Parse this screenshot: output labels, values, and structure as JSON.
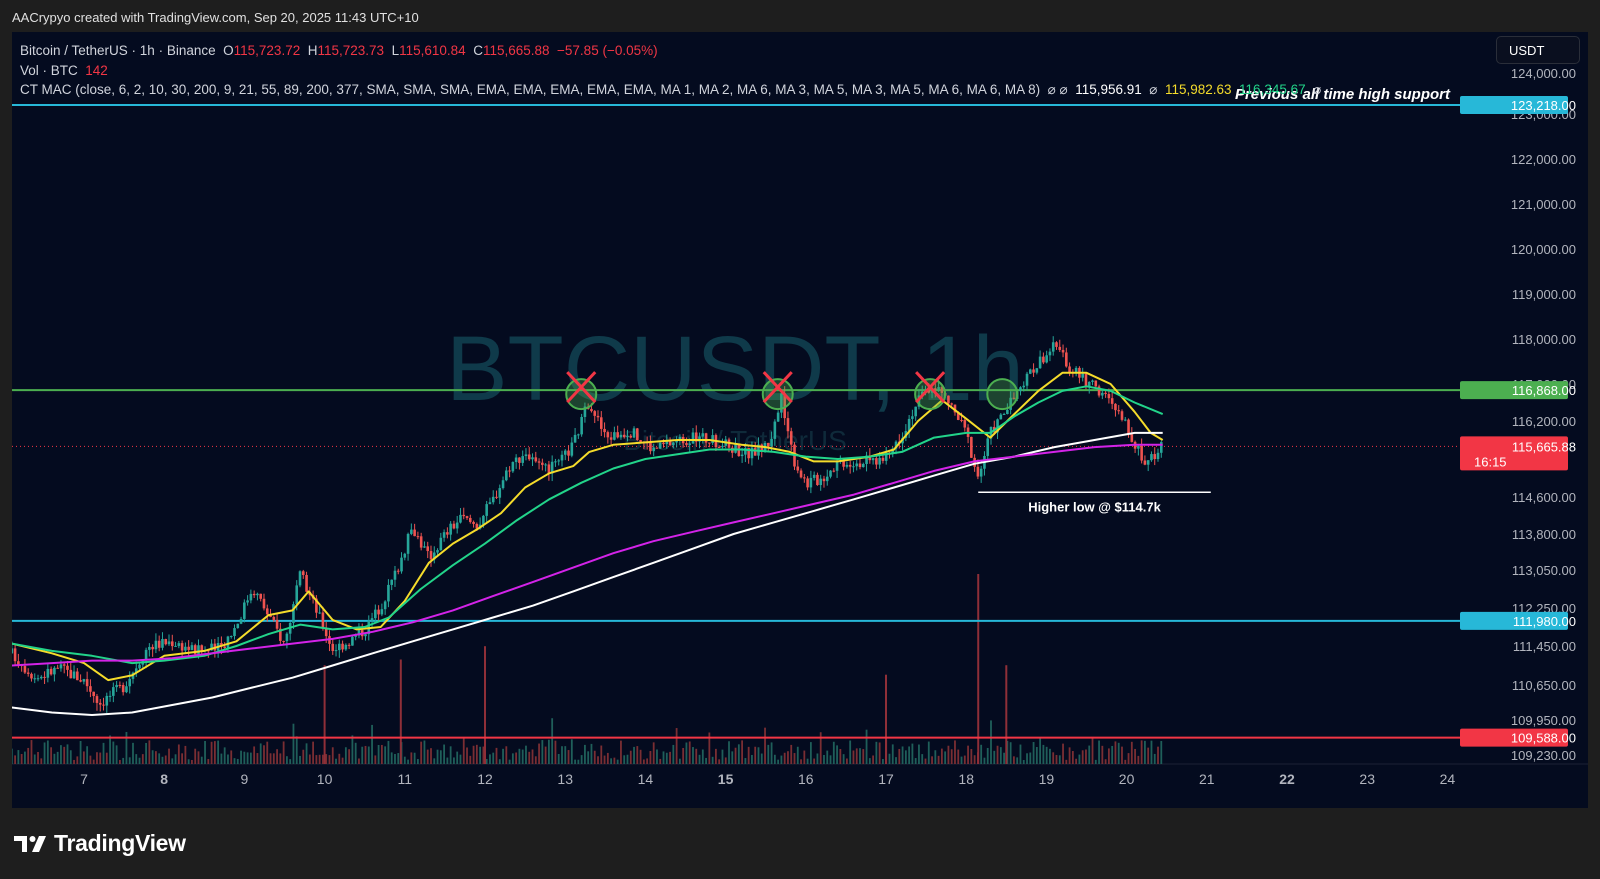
{
  "header": {
    "credit": "AACrypyo created with TradingView.com, Sep 20, 2025 11:43 UTC+10"
  },
  "legend": {
    "symbol": "Bitcoin / TetherUS · 1h · Binance",
    "open_label": "O",
    "open": "115,723.72",
    "high_label": "H",
    "high": "115,723.73",
    "low_label": "L",
    "low": "115,610.84",
    "close_label": "C",
    "close": "115,665.88",
    "change": "−57.85 (−0.05%)",
    "vol_label": "Vol · BTC",
    "vol": "142",
    "indicator": "CT MAC (close, 6, 2, 10, 30, 200, 9, 21, 55, 89, 200, 377, SMA, SMA, SMA, EMA, EMA, EMA, EMA, EMA, MA 1, MA 2, MA 6, MA 3, MA 5, MA 3, MA 5, MA 6, MA 6, MA 8)",
    "ind_symbols": "⌀ ⌀",
    "ind_v1": "115,956.91",
    "ind_sym2": "⌀",
    "ind_v2": "115,982.63",
    "ind_v3": "116,345.67",
    "ind_sym3": "⌀"
  },
  "currency": "USDT",
  "watermark": {
    "symbol": "BTCUSDT, 1h",
    "name": "Bitcoin / TetherUS"
  },
  "annotations": {
    "ath_support": "Previous all time high support",
    "higher_low": "Higher low @ $114.7k"
  },
  "footer": {
    "logo": "TradingView"
  },
  "colors": {
    "background": "#040b1f",
    "up": "#26a69a",
    "down": "#ef5350",
    "ema_yellow": "#f5dc2b",
    "ema_green": "#22d48a",
    "ma_white": "#ffffff",
    "ma_magenta": "#d323e8",
    "level_cyan": "#27b8d8",
    "level_green": "#4caf50",
    "level_red": "#f23645"
  },
  "chart_data": {
    "type": "candlestick",
    "symbol": "BTCUSDT",
    "interval": "1h",
    "y_scale": "non-linear (price axis labels as shown)",
    "y_ticks": [
      {
        "value": 124000,
        "label": "124,000.00"
      },
      {
        "value": 123000,
        "label": "123,000.00"
      },
      {
        "value": 122000,
        "label": "122,000.00"
      },
      {
        "value": 121000,
        "label": "121,000.00"
      },
      {
        "value": 120000,
        "label": "120,000.00"
      },
      {
        "value": 119000,
        "label": "119,000.00"
      },
      {
        "value": 118000,
        "label": "118,000.00"
      },
      {
        "value": 117000,
        "label": "117,000.00"
      },
      {
        "value": 116200,
        "label": "116,200.00"
      },
      {
        "value": 114600,
        "label": "114,600.00"
      },
      {
        "value": 113800,
        "label": "113,800.00"
      },
      {
        "value": 113050,
        "label": "113,050.00"
      },
      {
        "value": 112250,
        "label": "112,250.00"
      },
      {
        "value": 111450,
        "label": "111,450.00"
      },
      {
        "value": 110650,
        "label": "110,650.00"
      },
      {
        "value": 109950,
        "label": "109,950.00"
      },
      {
        "value": 109230,
        "label": "109,230.00"
      }
    ],
    "x_ticks": [
      {
        "day": 7,
        "label": "7",
        "bold": false
      },
      {
        "day": 8,
        "label": "8",
        "bold": true
      },
      {
        "day": 9,
        "label": "9",
        "bold": false
      },
      {
        "day": 10,
        "label": "10",
        "bold": false
      },
      {
        "day": 11,
        "label": "11",
        "bold": false
      },
      {
        "day": 12,
        "label": "12",
        "bold": false
      },
      {
        "day": 13,
        "label": "13",
        "bold": false
      },
      {
        "day": 14,
        "label": "14",
        "bold": false
      },
      {
        "day": 15,
        "label": "15",
        "bold": true
      },
      {
        "day": 16,
        "label": "16",
        "bold": false
      },
      {
        "day": 17,
        "label": "17",
        "bold": false
      },
      {
        "day": 18,
        "label": "18",
        "bold": false
      },
      {
        "day": 19,
        "label": "19",
        "bold": false
      },
      {
        "day": 20,
        "label": "20",
        "bold": false
      },
      {
        "day": 21,
        "label": "21",
        "bold": false
      },
      {
        "day": 22,
        "label": "22",
        "bold": true
      },
      {
        "day": 23,
        "label": "23",
        "bold": false
      },
      {
        "day": 24,
        "label": "24",
        "bold": false
      }
    ],
    "x_range_days": [
      6.1,
      24.05
    ],
    "price_levels": [
      {
        "value": 123218,
        "label": "123,218.00",
        "color": "#27b8d8"
      },
      {
        "value": 116868,
        "label": "116,868.00",
        "color": "#4caf50"
      },
      {
        "value": 111980,
        "label": "111,980.00",
        "color": "#27b8d8"
      },
      {
        "value": 109588,
        "label": "109,588.00",
        "color": "#f23645"
      }
    ],
    "current_price": {
      "value": 115665.88,
      "label": "115,665.88",
      "countdown": "16:15"
    },
    "higher_low": {
      "value": 114700,
      "from_day": 18.15,
      "to_day": 21.05
    },
    "price_path": [
      [
        6.1,
        111300
      ],
      [
        6.4,
        110800
      ],
      [
        6.7,
        111000
      ],
      [
        7.0,
        110750
      ],
      [
        7.2,
        110300
      ],
      [
        7.5,
        110650
      ],
      [
        7.8,
        111450
      ],
      [
        8.1,
        111550
      ],
      [
        8.4,
        111350
      ],
      [
        8.7,
        111400
      ],
      [
        8.9,
        111900
      ],
      [
        9.1,
        112700
      ],
      [
        9.3,
        112100
      ],
      [
        9.5,
        111500
      ],
      [
        9.7,
        112950
      ],
      [
        9.9,
        112200
      ],
      [
        10.1,
        111400
      ],
      [
        10.3,
        111550
      ],
      [
        10.5,
        111800
      ],
      [
        10.7,
        112300
      ],
      [
        10.9,
        113050
      ],
      [
        11.1,
        113950
      ],
      [
        11.3,
        113300
      ],
      [
        11.5,
        113800
      ],
      [
        11.7,
        114150
      ],
      [
        11.9,
        114000
      ],
      [
        12.1,
        114550
      ],
      [
        12.3,
        115250
      ],
      [
        12.5,
        115550
      ],
      [
        12.7,
        115150
      ],
      [
        12.9,
        115250
      ],
      [
        13.1,
        115700
      ],
      [
        13.3,
        116650
      ],
      [
        13.5,
        115850
      ],
      [
        13.8,
        116000
      ],
      [
        14.1,
        115600
      ],
      [
        14.4,
        115800
      ],
      [
        14.7,
        115850
      ],
      [
        15.0,
        115700
      ],
      [
        15.3,
        115500
      ],
      [
        15.55,
        115750
      ],
      [
        15.7,
        116700
      ],
      [
        15.85,
        115400
      ],
      [
        16.0,
        114900
      ],
      [
        16.2,
        115000
      ],
      [
        16.4,
        115350
      ],
      [
        16.7,
        115350
      ],
      [
        17.0,
        115400
      ],
      [
        17.2,
        115950
      ],
      [
        17.4,
        116650
      ],
      [
        17.6,
        117000
      ],
      [
        17.8,
        116550
      ],
      [
        18.0,
        115950
      ],
      [
        18.15,
        115000
      ],
      [
        18.3,
        115950
      ],
      [
        18.5,
        116450
      ],
      [
        18.7,
        116950
      ],
      [
        18.9,
        117500
      ],
      [
        19.1,
        117850
      ],
      [
        19.3,
        117350
      ],
      [
        19.5,
        117050
      ],
      [
        19.7,
        116800
      ],
      [
        19.9,
        116350
      ],
      [
        20.05,
        115950
      ],
      [
        20.2,
        115350
      ],
      [
        20.35,
        115500
      ],
      [
        20.45,
        115666
      ]
    ],
    "ma_lines": [
      {
        "name": "MA yellow",
        "color": "#f5dc2b",
        "points": [
          [
            6.1,
            111500
          ],
          [
            6.6,
            111300
          ],
          [
            7.0,
            111100
          ],
          [
            7.3,
            110750
          ],
          [
            7.6,
            110850
          ],
          [
            8.0,
            111250
          ],
          [
            8.5,
            111350
          ],
          [
            8.9,
            111550
          ],
          [
            9.3,
            112100
          ],
          [
            9.6,
            112200
          ],
          [
            9.8,
            112600
          ],
          [
            10.1,
            112000
          ],
          [
            10.4,
            111800
          ],
          [
            10.7,
            111850
          ],
          [
            11.0,
            112400
          ],
          [
            11.3,
            113200
          ],
          [
            11.6,
            113600
          ],
          [
            11.9,
            113900
          ],
          [
            12.2,
            114250
          ],
          [
            12.5,
            114800
          ],
          [
            12.8,
            115100
          ],
          [
            13.1,
            115250
          ],
          [
            13.3,
            115550
          ],
          [
            13.6,
            115700
          ],
          [
            14.0,
            115750
          ],
          [
            14.4,
            115800
          ],
          [
            14.8,
            115800
          ],
          [
            15.2,
            115700
          ],
          [
            15.5,
            115650
          ],
          [
            15.8,
            115550
          ],
          [
            16.1,
            115350
          ],
          [
            16.4,
            115350
          ],
          [
            16.8,
            115450
          ],
          [
            17.1,
            115600
          ],
          [
            17.4,
            116200
          ],
          [
            17.7,
            116650
          ],
          [
            18.0,
            116250
          ],
          [
            18.3,
            115850
          ],
          [
            18.6,
            116350
          ],
          [
            18.9,
            116850
          ],
          [
            19.2,
            117250
          ],
          [
            19.5,
            117250
          ],
          [
            19.8,
            117000
          ],
          [
            20.1,
            116400
          ],
          [
            20.3,
            115950
          ],
          [
            20.45,
            115800
          ]
        ]
      },
      {
        "name": "MA green",
        "color": "#22d48a",
        "points": [
          [
            6.1,
            111500
          ],
          [
            6.6,
            111350
          ],
          [
            7.1,
            111250
          ],
          [
            7.6,
            111100
          ],
          [
            8.0,
            111150
          ],
          [
            8.5,
            111250
          ],
          [
            8.9,
            111450
          ],
          [
            9.3,
            111700
          ],
          [
            9.7,
            111900
          ],
          [
            10.1,
            111800
          ],
          [
            10.5,
            111850
          ],
          [
            10.8,
            112050
          ],
          [
            11.2,
            112650
          ],
          [
            11.6,
            113150
          ],
          [
            12.0,
            113600
          ],
          [
            12.4,
            114100
          ],
          [
            12.8,
            114550
          ],
          [
            13.2,
            114900
          ],
          [
            13.6,
            115200
          ],
          [
            14.0,
            115400
          ],
          [
            14.4,
            115500
          ],
          [
            14.8,
            115600
          ],
          [
            15.2,
            115600
          ],
          [
            15.6,
            115550
          ],
          [
            16.0,
            115450
          ],
          [
            16.4,
            115400
          ],
          [
            16.8,
            115450
          ],
          [
            17.2,
            115550
          ],
          [
            17.6,
            115850
          ],
          [
            18.0,
            115950
          ],
          [
            18.3,
            115950
          ],
          [
            18.6,
            116300
          ],
          [
            18.9,
            116600
          ],
          [
            19.2,
            116850
          ],
          [
            19.5,
            116950
          ],
          [
            19.8,
            116850
          ],
          [
            20.1,
            116600
          ],
          [
            20.45,
            116350
          ]
        ]
      },
      {
        "name": "MA white",
        "color": "#ffffff",
        "points": [
          [
            6.1,
            110200
          ],
          [
            6.6,
            110100
          ],
          [
            7.1,
            110050
          ],
          [
            7.6,
            110100
          ],
          [
            8.1,
            110250
          ],
          [
            8.6,
            110400
          ],
          [
            9.1,
            110600
          ],
          [
            9.6,
            110800
          ],
          [
            10.1,
            111050
          ],
          [
            10.6,
            111300
          ],
          [
            11.1,
            111550
          ],
          [
            11.6,
            111800
          ],
          [
            12.1,
            112050
          ],
          [
            12.6,
            112300
          ],
          [
            13.1,
            112600
          ],
          [
            13.6,
            112900
          ],
          [
            14.1,
            113200
          ],
          [
            14.6,
            113500
          ],
          [
            15.1,
            113800
          ],
          [
            15.6,
            114050
          ],
          [
            16.1,
            114300
          ],
          [
            16.6,
            114550
          ],
          [
            17.1,
            114800
          ],
          [
            17.6,
            115050
          ],
          [
            18.1,
            115300
          ],
          [
            18.6,
            115450
          ],
          [
            19.1,
            115650
          ],
          [
            19.6,
            115800
          ],
          [
            20.1,
            115950
          ],
          [
            20.45,
            115950
          ]
        ]
      },
      {
        "name": "MA magenta",
        "color": "#d323e8",
        "points": [
          [
            6.1,
            111050
          ],
          [
            6.6,
            111100
          ],
          [
            7.1,
            111150
          ],
          [
            7.6,
            111150
          ],
          [
            8.1,
            111200
          ],
          [
            8.6,
            111300
          ],
          [
            9.1,
            111400
          ],
          [
            9.6,
            111500
          ],
          [
            10.1,
            111600
          ],
          [
            10.6,
            111750
          ],
          [
            11.1,
            111950
          ],
          [
            11.6,
            112200
          ],
          [
            12.1,
            112500
          ],
          [
            12.6,
            112800
          ],
          [
            13.1,
            113100
          ],
          [
            13.6,
            113400
          ],
          [
            14.1,
            113650
          ],
          [
            14.6,
            113850
          ],
          [
            15.1,
            114050
          ],
          [
            15.6,
            114250
          ],
          [
            16.1,
            114450
          ],
          [
            16.6,
            114650
          ],
          [
            17.1,
            114900
          ],
          [
            17.6,
            115150
          ],
          [
            18.1,
            115350
          ],
          [
            18.6,
            115450
          ],
          [
            19.1,
            115550
          ],
          [
            19.6,
            115650
          ],
          [
            20.1,
            115700
          ],
          [
            20.45,
            115700
          ]
        ]
      }
    ],
    "rejection_marks": [
      {
        "day": 13.2,
        "value": 116868,
        "kind": "x"
      },
      {
        "day": 15.65,
        "value": 116868,
        "kind": "x"
      },
      {
        "day": 17.55,
        "value": 116868,
        "kind": "x"
      },
      {
        "day": 18.45,
        "value": 116868,
        "kind": "circle"
      }
    ],
    "volume_spikes": [
      {
        "day": 18.15,
        "height": 1.0
      },
      {
        "day": 12.0,
        "height": 0.62
      },
      {
        "day": 10.95,
        "height": 0.55
      },
      {
        "day": 10.0,
        "height": 0.52
      },
      {
        "day": 18.5,
        "height": 0.52
      },
      {
        "day": 17.0,
        "height": 0.47
      }
    ]
  }
}
